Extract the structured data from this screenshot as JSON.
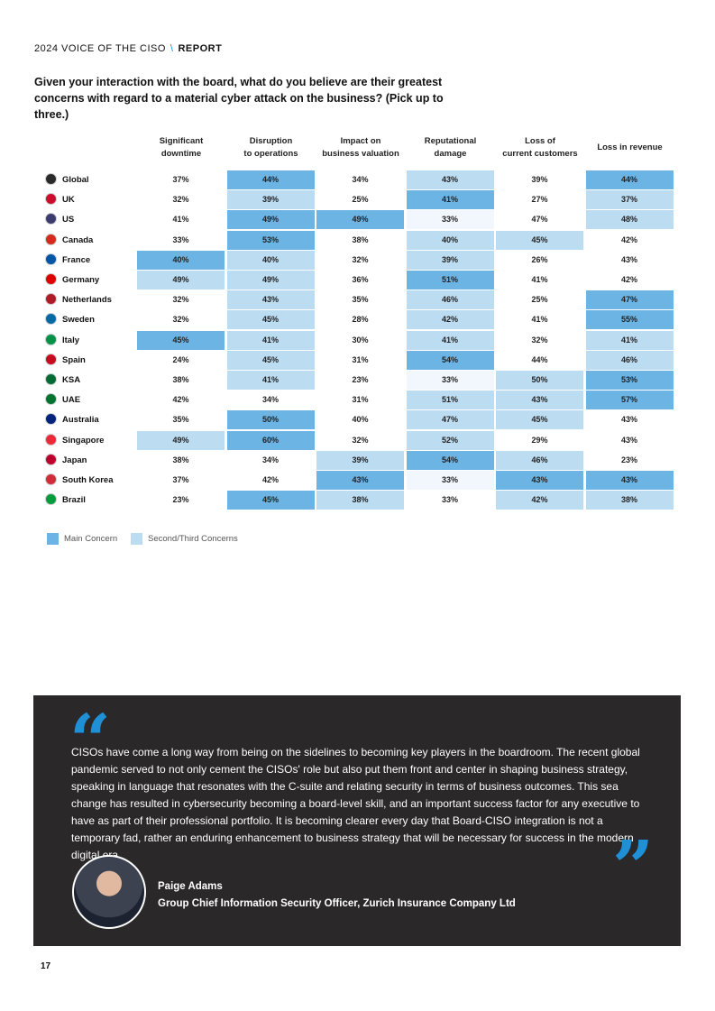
{
  "header": {
    "series": "2024 VOICE OF THE CISO",
    "separator": "\\",
    "section": "REPORT"
  },
  "question": "Given your interaction with the board, what do you believe are their greatest concerns with regard to a material cyber attack on the business? (Pick up to three.)",
  "table": {
    "columns": [
      [
        "Significant",
        "downtime"
      ],
      [
        "Disruption",
        "to operations"
      ],
      [
        "Impact on",
        "business valuation"
      ],
      [
        "Reputational",
        "damage"
      ],
      [
        "Loss of",
        "current customers"
      ],
      [
        "Loss in revenue"
      ]
    ],
    "rows": [
      {
        "country": "Global",
        "cells": [
          "37%",
          "44%",
          "34%",
          "43%",
          "39%",
          "44%"
        ],
        "colors": [
          "#ffffff",
          "#6cb4e4",
          "#ffffff",
          "#bcdcf2",
          "#ffffff",
          "#6cb4e4"
        ]
      },
      {
        "country": "UK",
        "cells": [
          "32%",
          "39%",
          "25%",
          "41%",
          "27%",
          "37%"
        ],
        "colors": [
          "#ffffff",
          "#bcdcf2",
          "#ffffff",
          "#6cb4e4",
          "#ffffff",
          "#bcdcf2"
        ]
      },
      {
        "country": "US",
        "cells": [
          "41%",
          "49%",
          "49%",
          "33%",
          "47%",
          "48%"
        ],
        "colors": [
          "#ffffff",
          "#6cb4e4",
          "#6cb4e4",
          "#f1f7fc",
          "#ffffff",
          "#bcdcf2"
        ]
      },
      {
        "country": "Canada",
        "cells": [
          "33%",
          "53%",
          "38%",
          "40%",
          "45%",
          "42%"
        ],
        "colors": [
          "#ffffff",
          "#6cb4e4",
          "#ffffff",
          "#bcdcf2",
          "#bcdcf2",
          "#ffffff"
        ]
      },
      {
        "country": "France",
        "cells": [
          "40%",
          "40%",
          "32%",
          "39%",
          "26%",
          "43%"
        ],
        "colors": [
          "#6cb4e4",
          "#bcdcf2",
          "#ffffff",
          "#bcdcf2",
          "#ffffff",
          "#ffffff"
        ]
      },
      {
        "country": "Germany",
        "cells": [
          "49%",
          "49%",
          "36%",
          "51%",
          "41%",
          "42%"
        ],
        "colors": [
          "#bcdcf2",
          "#bcdcf2",
          "#ffffff",
          "#6cb4e4",
          "#ffffff",
          "#ffffff"
        ]
      },
      {
        "country": "Netherlands",
        "cells": [
          "32%",
          "43%",
          "35%",
          "46%",
          "25%",
          "47%"
        ],
        "colors": [
          "#ffffff",
          "#bcdcf2",
          "#ffffff",
          "#bcdcf2",
          "#ffffff",
          "#6cb4e4"
        ]
      },
      {
        "country": "Sweden",
        "cells": [
          "32%",
          "45%",
          "28%",
          "42%",
          "41%",
          "55%"
        ],
        "colors": [
          "#ffffff",
          "#bcdcf2",
          "#ffffff",
          "#bcdcf2",
          "#ffffff",
          "#6cb4e4"
        ]
      },
      {
        "country": "Italy",
        "cells": [
          "45%",
          "41%",
          "30%",
          "41%",
          "32%",
          "41%"
        ],
        "colors": [
          "#6cb4e4",
          "#bcdcf2",
          "#ffffff",
          "#bcdcf2",
          "#ffffff",
          "#bcdcf2"
        ]
      },
      {
        "country": "Spain",
        "cells": [
          "24%",
          "45%",
          "31%",
          "54%",
          "44%",
          "46%"
        ],
        "colors": [
          "#ffffff",
          "#bcdcf2",
          "#ffffff",
          "#6cb4e4",
          "#ffffff",
          "#bcdcf2"
        ]
      },
      {
        "country": "KSA",
        "cells": [
          "38%",
          "41%",
          "23%",
          "33%",
          "50%",
          "53%"
        ],
        "colors": [
          "#ffffff",
          "#bcdcf2",
          "#ffffff",
          "#f1f7fc",
          "#bcdcf2",
          "#6cb4e4"
        ]
      },
      {
        "country": "UAE",
        "cells": [
          "42%",
          "34%",
          "31%",
          "51%",
          "43%",
          "57%"
        ],
        "colors": [
          "#ffffff",
          "#ffffff",
          "#ffffff",
          "#bcdcf2",
          "#bcdcf2",
          "#6cb4e4"
        ]
      },
      {
        "country": "Australia",
        "cells": [
          "35%",
          "50%",
          "40%",
          "47%",
          "45%",
          "43%"
        ],
        "colors": [
          "#ffffff",
          "#6cb4e4",
          "#ffffff",
          "#bcdcf2",
          "#bcdcf2",
          "#ffffff"
        ]
      },
      {
        "country": "Singapore",
        "cells": [
          "49%",
          "60%",
          "32%",
          "52%",
          "29%",
          "43%"
        ],
        "colors": [
          "#bcdcf2",
          "#6cb4e4",
          "#ffffff",
          "#bcdcf2",
          "#ffffff",
          "#ffffff"
        ]
      },
      {
        "country": "Japan",
        "cells": [
          "38%",
          "34%",
          "39%",
          "54%",
          "46%",
          "23%"
        ],
        "colors": [
          "#ffffff",
          "#ffffff",
          "#bcdcf2",
          "#6cb4e4",
          "#bcdcf2",
          "#ffffff"
        ]
      },
      {
        "country": "South Korea",
        "cells": [
          "37%",
          "42%",
          "43%",
          "33%",
          "43%",
          "43%"
        ],
        "colors": [
          "#ffffff",
          "#ffffff",
          "#6cb4e4",
          "#f1f7fc",
          "#6cb4e4",
          "#6cb4e4"
        ]
      },
      {
        "country": "Brazil",
        "cells": [
          "23%",
          "45%",
          "38%",
          "33%",
          "42%",
          "38%"
        ],
        "colors": [
          "#ffffff",
          "#6cb4e4",
          "#bcdcf2",
          "#ffffff",
          "#bcdcf2",
          "#bcdcf2"
        ]
      }
    ]
  },
  "legend": [
    {
      "label": "Main Concern",
      "color": "#6cb4e4"
    },
    {
      "label": "Second/Third Concerns",
      "color": "#bcdcf2"
    }
  ],
  "quote": {
    "text": "CISOs have come a long way from being on the sidelines to becoming key players in the boardroom. The recent global pandemic served to not only cement the CISOs' role but also put them front and center in shaping business strategy, speaking in language that resonates with the C-suite and relating security in terms of business outcomes. This sea change has resulted in cybersecurity becoming a board-level skill, and an important success factor for any executive to have as part of their professional portfolio. It is becoming clearer every day that Board-CISO integration is not a temporary fad, rather an enduring enhancement to business strategy that will be necessary for success in the modern digital era.",
    "name": "Paige Adams",
    "role": "Group Chief Information Security Officer, Zurich Insurance Company Ltd"
  },
  "page_number": "17"
}
